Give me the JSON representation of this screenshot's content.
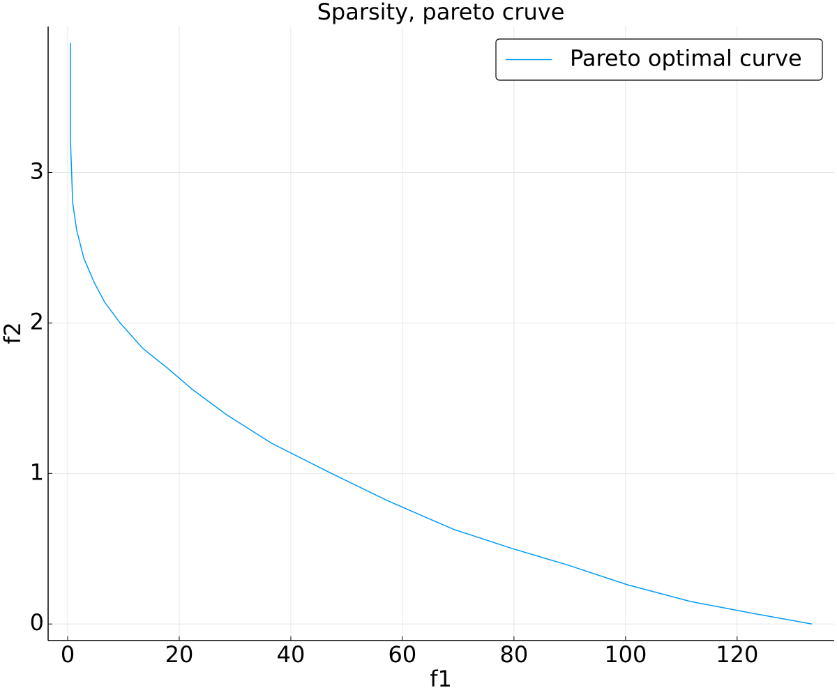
{
  "chart_data": {
    "type": "line",
    "title": "Sparsity, pareto cruve",
    "x_label": "f1",
    "y_label": "f2",
    "x": [
      0.5,
      0.5,
      0.9,
      1.6,
      2.9,
      4.75,
      6.6,
      9.4,
      13.5,
      17.9,
      22.3,
      28.5,
      36.6,
      47.3,
      57.3,
      69.1,
      79.8,
      89.8,
      100.4,
      111.6,
      122.9,
      133.4
    ],
    "series": [
      {
        "name": "Pareto optimal curve",
        "color": "#009af9",
        "values": [
          3.86,
          3.22,
          2.8,
          2.62,
          2.43,
          2.27,
          2.14,
          2.0,
          1.83,
          1.7,
          1.56,
          1.39,
          1.2,
          1.0,
          0.82,
          0.63,
          0.5,
          0.39,
          0.26,
          0.15,
          0.07,
          0
        ]
      }
    ],
    "xlim": [
      -3.5,
      137.4
    ],
    "ylim": [
      -0.11,
      3.97
    ],
    "xticks": [
      0,
      20,
      40,
      60,
      80,
      100,
      120
    ],
    "yticks": [
      0,
      1,
      2,
      3
    ],
    "grid": true,
    "legend_position": "top-right"
  }
}
